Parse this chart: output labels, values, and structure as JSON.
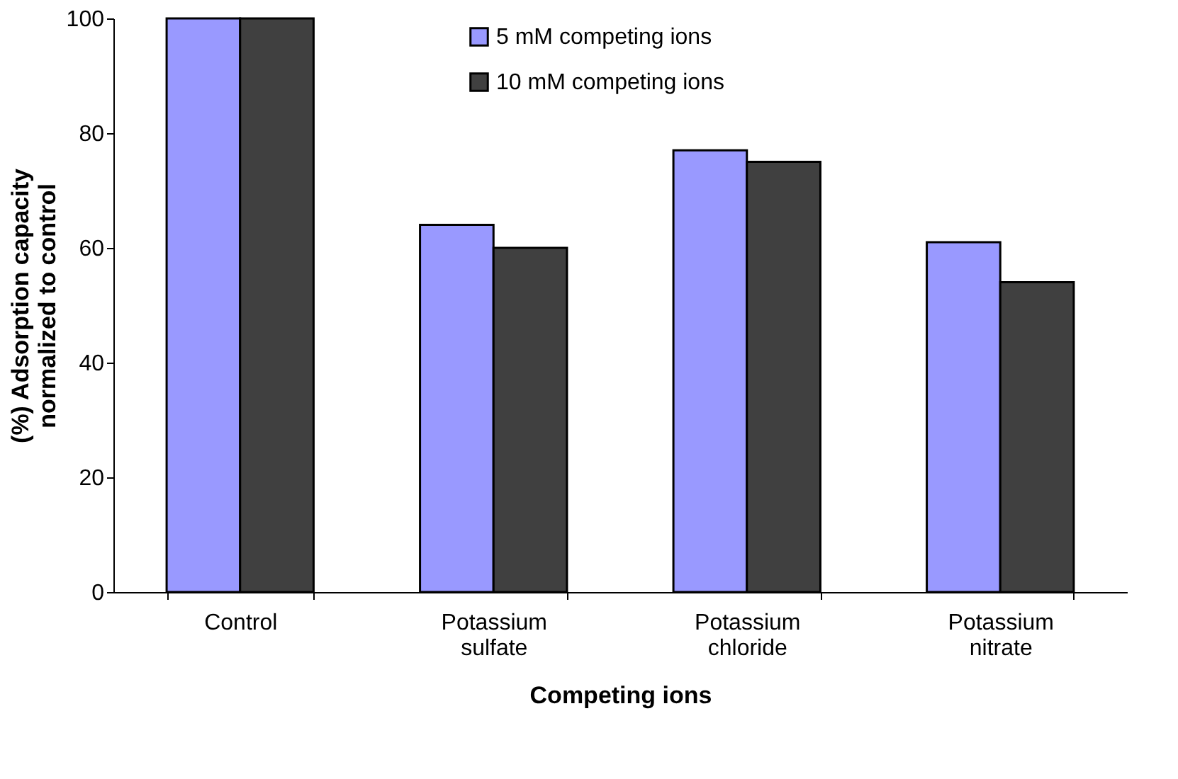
{
  "chart_data": {
    "type": "bar",
    "xlabel": "Competing ions",
    "ylabel": "(%) Adsorption capacity normalized to control",
    "categories": [
      "Control",
      "Potassium sulfate",
      "Potassium chloride",
      "Potassium nitrate"
    ],
    "series": [
      {
        "name": "5 mM competing ions",
        "color": "#9999ff",
        "values": [
          100,
          64,
          77,
          61
        ]
      },
      {
        "name": "10 mM competing ions",
        "color": "#404040",
        "values": [
          100,
          60,
          75,
          54
        ]
      }
    ],
    "ylim": [
      0,
      100
    ],
    "yticks": [
      0,
      20,
      40,
      60,
      80,
      100
    ],
    "grid": false,
    "legend": "top"
  }
}
